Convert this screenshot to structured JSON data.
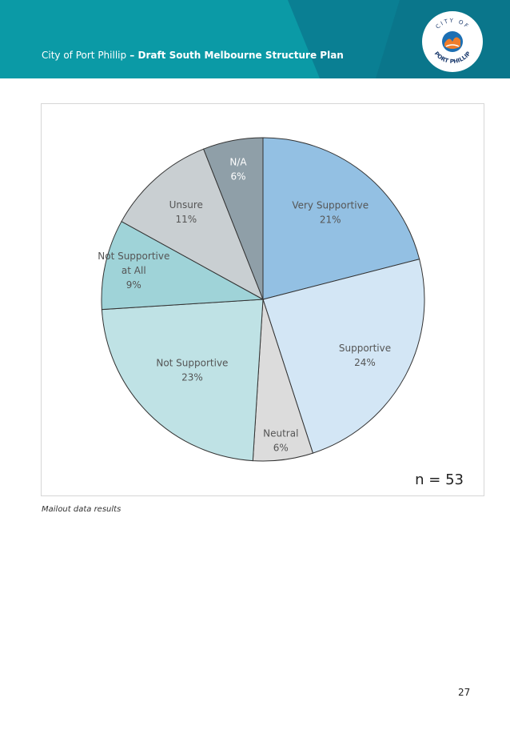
{
  "header": {
    "title_regular": "City of Port Phillip",
    "title_bold": " – Draft South Melbourne Structure Plan",
    "logo_text_top": "CITY OF",
    "logo_text_bottom": "PORT PHILLIP",
    "background": "#0b9aa6"
  },
  "chart_data": {
    "type": "pie",
    "slices": [
      {
        "label": [
          "Very Supportive"
        ],
        "percent_label": "21%",
        "value": 21,
        "color": "#93c0e3",
        "text_color": "#555555"
      },
      {
        "label": [
          "Supportive"
        ],
        "percent_label": "24%",
        "value": 24,
        "color": "#d3e6f5",
        "text_color": "#555555"
      },
      {
        "label": [
          "Neutral"
        ],
        "percent_label": "6%",
        "value": 6,
        "color": "#dcdcdc",
        "text_color": "#555555"
      },
      {
        "label": [
          "Not Supportive"
        ],
        "percent_label": "23%",
        "value": 23,
        "color": "#bfe2e5",
        "text_color": "#555555"
      },
      {
        "label": [
          "Not Supportive",
          "at All"
        ],
        "percent_label": "9%",
        "value": 9,
        "color": "#9fd3d8",
        "text_color": "#555555"
      },
      {
        "label": [
          "Unsure"
        ],
        "percent_label": "11%",
        "value": 11,
        "color": "#c9cfd2",
        "text_color": "#555555"
      },
      {
        "label": [
          "N/A"
        ],
        "percent_label": "6%",
        "value": 6,
        "color": "#8f9fa8",
        "text_color": "#ffffff"
      }
    ],
    "sample_size": "n = 53"
  },
  "caption": "Mailout data results",
  "page_number": "27"
}
